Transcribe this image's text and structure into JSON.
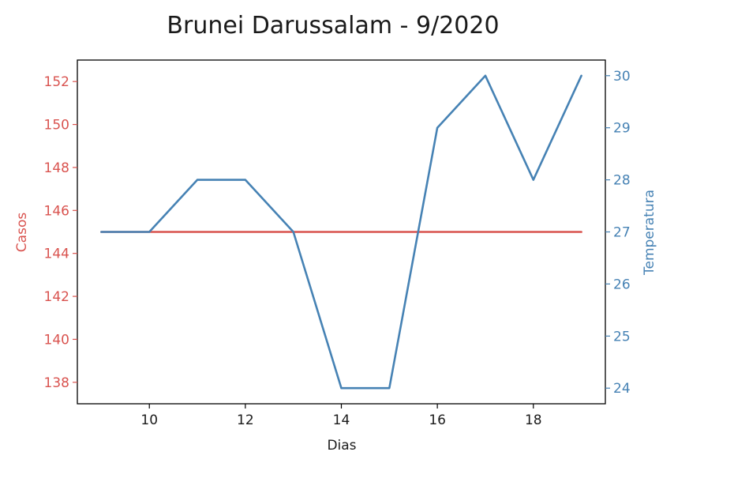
{
  "chart_data": {
    "type": "line",
    "title": "Brunei Darussalam - 9/2020",
    "xlabel": "Dias",
    "ylabel_left": "Casos",
    "ylabel_right": "Temperatura",
    "x": [
      9,
      10,
      11,
      12,
      13,
      14,
      15,
      16,
      17,
      18,
      19
    ],
    "xlim": [
      8.5,
      19.5
    ],
    "xticks": [
      10,
      12,
      14,
      16,
      18
    ],
    "ylim_left": [
      137,
      153
    ],
    "yticks_left": [
      138,
      140,
      142,
      144,
      146,
      148,
      150,
      152
    ],
    "ylim_right": [
      23.7,
      30.3
    ],
    "yticks_right": [
      24,
      25,
      26,
      27,
      28,
      29,
      30
    ],
    "grid": false,
    "series": [
      {
        "axis": "left",
        "color": "#d9534f",
        "values": [
          145,
          145,
          145,
          145,
          145,
          145,
          145,
          145,
          145,
          145,
          145
        ]
      },
      {
        "axis": "right",
        "color": "#4682b4",
        "values": [
          27,
          27,
          28,
          28,
          27,
          24,
          24,
          29,
          30,
          28,
          30
        ]
      }
    ],
    "colors": {
      "left_axis": "#d9534f",
      "right_axis": "#4682b4",
      "frame": "#000000"
    }
  }
}
